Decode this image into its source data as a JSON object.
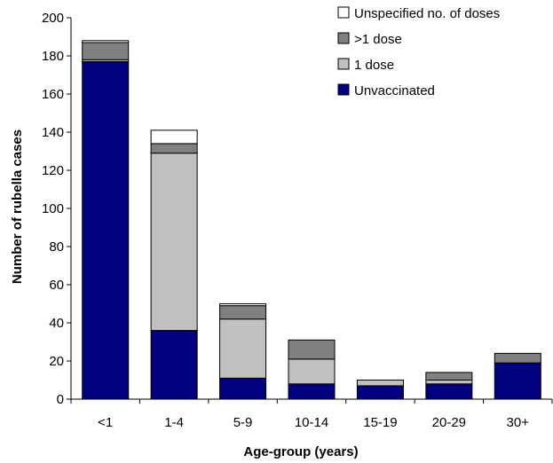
{
  "chart_data": {
    "type": "bar",
    "stacked": true,
    "xlabel": "Age-group (years)",
    "ylabel": "Number of rubella cases",
    "ylim": [
      0,
      200
    ],
    "yticks": [
      0,
      20,
      40,
      60,
      80,
      100,
      120,
      140,
      160,
      180,
      200
    ],
    "categories": [
      "<1",
      "1-4",
      "5-9",
      "10-14",
      "15-19",
      "20-29",
      "30+"
    ],
    "series": [
      {
        "name": "Unvaccinated",
        "color": "#000080",
        "values": [
          177,
          36,
          11,
          8,
          7,
          8,
          19
        ]
      },
      {
        "name": "1 dose",
        "color": "#c0c0c0",
        "values": [
          1,
          93,
          31,
          13,
          3,
          2,
          0
        ]
      },
      {
        "name": ">1 dose",
        "color": "#808080",
        "values": [
          9,
          5,
          7,
          10,
          0,
          4,
          5
        ]
      },
      {
        "name": "Unspecified no. of doses",
        "color": "#ffffff",
        "values": [
          1,
          7,
          1,
          0,
          0,
          0,
          0
        ]
      }
    ],
    "legend": {
      "position": "top-right",
      "order": [
        ">1 dose",
        "1 dose",
        "Unvaccinated",
        "Unspecified no. of doses"
      ],
      "display_order": [
        "Unspecified no. of doses",
        ">1 dose",
        "1 dose",
        "Unvaccinated"
      ]
    },
    "grid": false
  }
}
